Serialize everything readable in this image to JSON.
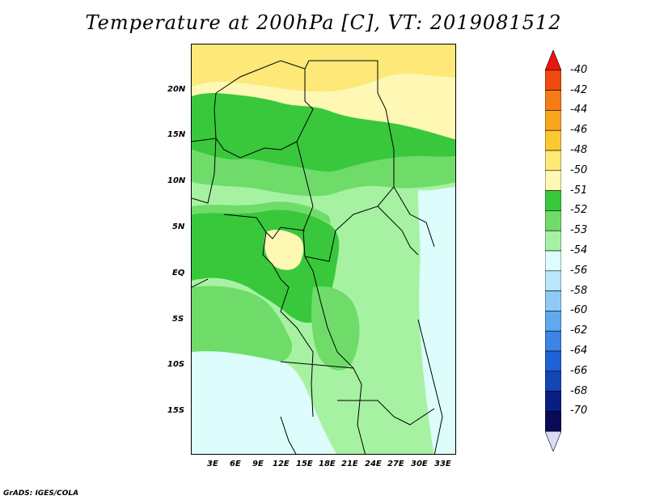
{
  "title": "Temperature at 200hPa [C], VT: 2019081512",
  "credit": "GrADS: IGES/COLA",
  "lat_labels": [
    "20N",
    "15N",
    "10N",
    "5N",
    "EQ",
    "5S",
    "10S",
    "15S"
  ],
  "lon_labels": [
    "3E",
    "6E",
    "9E",
    "12E",
    "15E",
    "18E",
    "21E",
    "24E",
    "27E",
    "30E",
    "33E"
  ],
  "colorbar": {
    "labels": [
      "-40",
      "-42",
      "-44",
      "-46",
      "-48",
      "-50",
      "-51",
      "-52",
      "-53",
      "-54",
      "-56",
      "-58",
      "-60",
      "-62",
      "-64",
      "-66",
      "-68",
      "-70"
    ],
    "colors": [
      "#e8160e",
      "#f04a10",
      "#f57c14",
      "#f9a51e",
      "#fbc832",
      "#fde878",
      "#fff8b4",
      "#39c83c",
      "#6fdc6a",
      "#a6f2a2",
      "#ddfcfc",
      "#b8e6fa",
      "#8fcaf4",
      "#61a8ee",
      "#3c84e6",
      "#1e62d6",
      "#1446b4",
      "#0a1e82",
      "#0a0a5a",
      "#dcdcf8"
    ]
  }
}
